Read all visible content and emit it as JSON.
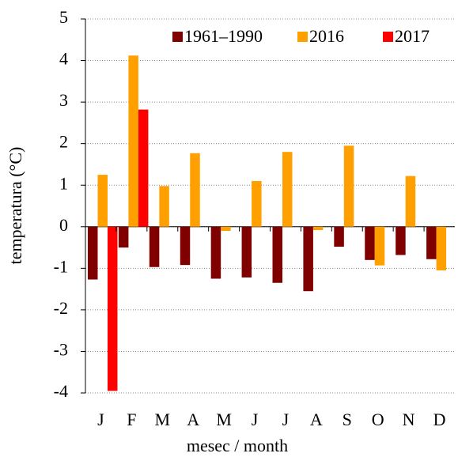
{
  "chart_data": {
    "type": "bar",
    "categories": [
      "J",
      "F",
      "M",
      "A",
      "M",
      "J",
      "J",
      "A",
      "S",
      "O",
      "N",
      "D"
    ],
    "series": [
      {
        "name": "1961–1990",
        "color": "#800000",
        "values": [
          -1.27,
          -0.5,
          -0.97,
          -0.92,
          -1.25,
          -1.22,
          -1.35,
          -1.55,
          -0.48,
          -0.8,
          -0.68,
          -0.78
        ]
      },
      {
        "name": "2016",
        "color": "#ffa000",
        "values": [
          1.25,
          4.12,
          0.98,
          1.77,
          -0.1,
          1.1,
          1.8,
          -0.08,
          1.95,
          -0.93,
          1.22,
          -1.05
        ]
      },
      {
        "name": "2017",
        "color": "#ff0000",
        "values": [
          -3.95,
          2.82,
          null,
          null,
          null,
          null,
          null,
          null,
          null,
          null,
          null,
          null
        ]
      }
    ],
    "ylim": [
      -4,
      5
    ],
    "yticks": [
      -4,
      -3,
      -2,
      -1,
      0,
      1,
      2,
      3,
      4,
      5
    ],
    "grid": true,
    "legend": "top-right",
    "xlabel": "mesec / month",
    "ylabel": "temperatura (°C)"
  }
}
